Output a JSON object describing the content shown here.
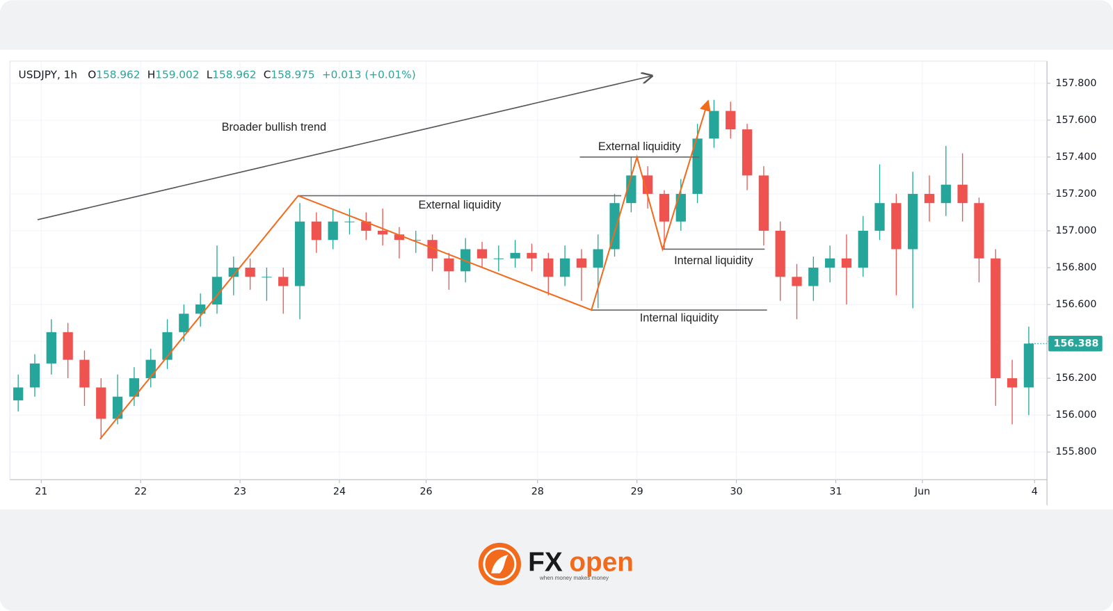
{
  "chart_data": {
    "type": "candlestick",
    "symbol": "USDJPY, 1h",
    "legend_items": [
      {
        "key": "O",
        "value": "158.962"
      },
      {
        "key": "H",
        "value": "159.002"
      },
      {
        "key": "L",
        "value": "158.962"
      },
      {
        "key": "C",
        "value": "158.975"
      }
    ],
    "change": "+0.013 (+0.01%)",
    "up_color": "#26a69a",
    "down_color": "#ef5350",
    "x": [
      0.5,
      1.5,
      2.5,
      3.5,
      4.5,
      5.5,
      6.5,
      7.5,
      8.5,
      9.5,
      10.5,
      11.5,
      12.5,
      13.5,
      14.5,
      15.5,
      16.5,
      17.5,
      18.5,
      19.5,
      20.5,
      21.5,
      22.5,
      23.5,
      24.5,
      25.5,
      26.5,
      27.5,
      28.5,
      29.5,
      30.5,
      31.5,
      32.5,
      33.5,
      34.5,
      35.5,
      36.5,
      37.5,
      38.5,
      39.5,
      40.5,
      41.5,
      42.5,
      43.5,
      44.5,
      45.5,
      46.5,
      47.5,
      48.5,
      49.5,
      50.5,
      51.5,
      52.5,
      53.5,
      54.5,
      55.5,
      56.5,
      57.5,
      58.5,
      59.5,
      60.5,
      61.5
    ],
    "open": [
      156.08,
      156.15,
      156.28,
      156.45,
      156.3,
      156.15,
      155.98,
      156.1,
      156.2,
      156.3,
      156.45,
      156.55,
      156.6,
      156.75,
      156.8,
      156.75,
      156.75,
      156.7,
      157.05,
      156.95,
      157.05,
      157.05,
      157.0,
      156.98,
      156.95,
      156.95,
      156.85,
      156.78,
      156.9,
      156.85,
      156.85,
      156.88,
      156.85,
      156.75,
      156.85,
      156.8,
      156.9,
      157.15,
      157.3,
      157.2,
      157.05,
      157.2,
      157.5,
      157.65,
      157.55,
      157.3,
      157.0,
      156.75,
      156.7,
      156.8,
      156.85,
      156.8,
      157.0,
      157.15,
      156.9,
      157.2,
      157.15,
      157.25,
      157.15,
      156.85,
      156.2,
      156.15
    ],
    "high": [
      156.22,
      156.33,
      156.52,
      156.5,
      156.35,
      156.2,
      156.22,
      156.26,
      156.36,
      156.52,
      156.6,
      156.66,
      156.92,
      156.86,
      156.85,
      156.8,
      156.8,
      157.15,
      157.1,
      157.12,
      157.12,
      157.1,
      157.12,
      157.02,
      157.0,
      156.98,
      156.88,
      156.96,
      156.94,
      156.92,
      156.95,
      156.93,
      156.88,
      156.92,
      156.9,
      156.98,
      157.2,
      157.4,
      157.35,
      157.22,
      157.28,
      157.58,
      157.71,
      157.7,
      157.58,
      157.35,
      157.05,
      156.82,
      156.86,
      156.92,
      156.98,
      157.08,
      157.36,
      157.2,
      157.32,
      157.3,
      157.46,
      157.42,
      157.18,
      156.9,
      156.3,
      156.48
    ],
    "low": [
      156.02,
      156.1,
      156.22,
      156.2,
      156.05,
      155.87,
      155.95,
      156.05,
      156.15,
      156.25,
      156.4,
      156.48,
      156.55,
      156.65,
      156.68,
      156.62,
      156.55,
      156.52,
      156.88,
      156.9,
      156.98,
      156.95,
      156.92,
      156.85,
      156.88,
      156.78,
      156.68,
      156.72,
      156.8,
      156.78,
      156.8,
      156.78,
      156.65,
      156.7,
      156.62,
      156.58,
      156.86,
      157.1,
      157.12,
      156.9,
      157.0,
      157.15,
      157.45,
      157.5,
      157.22,
      156.92,
      156.62,
      156.52,
      156.62,
      156.72,
      156.6,
      156.75,
      156.95,
      156.65,
      156.58,
      157.05,
      157.08,
      157.05,
      156.72,
      156.05,
      155.95,
      156.0
    ],
    "close": [
      156.15,
      156.28,
      156.45,
      156.3,
      156.15,
      155.98,
      156.1,
      156.2,
      156.3,
      156.45,
      156.55,
      156.6,
      156.75,
      156.8,
      156.75,
      156.75,
      156.7,
      157.05,
      156.95,
      157.05,
      157.05,
      157.0,
      156.98,
      156.95,
      156.95,
      156.85,
      156.78,
      156.9,
      156.85,
      156.85,
      156.88,
      156.85,
      156.75,
      156.85,
      156.8,
      156.9,
      157.15,
      157.3,
      157.2,
      157.05,
      157.2,
      157.5,
      157.65,
      157.55,
      157.3,
      157.0,
      156.75,
      156.7,
      156.8,
      156.85,
      156.8,
      157.0,
      157.15,
      156.9,
      157.2,
      157.15,
      157.25,
      157.15,
      156.85,
      156.2,
      156.15,
      156.388
    ],
    "xlim": [
      0,
      62.6
    ],
    "ylim": [
      155.65,
      157.92
    ],
    "xticks": [
      {
        "value": 1.89,
        "label": "21"
      },
      {
        "value": 7.89,
        "label": "22"
      },
      {
        "value": 13.89,
        "label": "23"
      },
      {
        "value": 19.89,
        "label": "24"
      },
      {
        "value": 25.12,
        "label": "26"
      },
      {
        "value": 31.85,
        "label": "28"
      },
      {
        "value": 37.85,
        "label": "29"
      },
      {
        "value": 43.85,
        "label": "30"
      },
      {
        "value": 49.85,
        "label": "31"
      },
      {
        "value": 55.08,
        "label": "Jun"
      },
      {
        "value": 61.85,
        "label": "4"
      }
    ],
    "yticks": [
      {
        "value": 155.8,
        "label": "155.800"
      },
      {
        "value": 156.0,
        "label": "156.000"
      },
      {
        "value": 156.2,
        "label": "156.200"
      },
      {
        "value": 156.4,
        "label": "156.400"
      },
      {
        "value": 156.6,
        "label": "156.600"
      },
      {
        "value": 156.8,
        "label": "156.800"
      },
      {
        "value": 157.0,
        "label": "157.000"
      },
      {
        "value": 157.2,
        "label": "157.200"
      },
      {
        "value": 157.4,
        "label": "157.400"
      },
      {
        "value": 157.6,
        "label": "157.600"
      },
      {
        "value": 157.8,
        "label": "157.800"
      }
    ],
    "grid": true,
    "annotation_color": "#f26a1b",
    "zigzag": {
      "x": [
        5.44,
        17.4,
        35.1,
        37.85,
        39.39,
        42.13
      ],
      "y": [
        155.87,
        157.19,
        156.57,
        157.4,
        156.9,
        157.7
      ]
    },
    "trend": {
      "label": "Broader bullish trend",
      "x": [
        1.67,
        38.75
      ],
      "y": [
        157.06,
        157.84
      ]
    },
    "levels": [
      {
        "label": "External liquidity",
        "value": 157.19,
        "x": [
          17.4,
          36.9
        ]
      },
      {
        "label": "External liquidity",
        "value": 157.4,
        "x": [
          34.4,
          41.6
        ]
      },
      {
        "label": "Internal liquidity",
        "value": 156.9,
        "x": [
          39.39,
          45.56
        ]
      },
      {
        "label": "Internal liquidity",
        "value": 156.57,
        "x": [
          35.1,
          45.7
        ]
      }
    ]
  },
  "logo": {
    "brand_fx": "FX",
    "brand_open": "open",
    "tagline": "when money makes money"
  }
}
